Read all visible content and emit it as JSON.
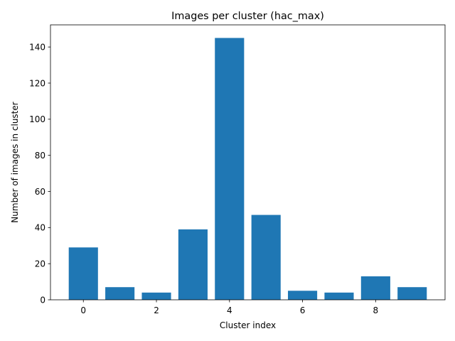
{
  "chart_data": {
    "type": "bar",
    "title": "Images per cluster (hac_max)",
    "xlabel": "Cluster index",
    "ylabel": "Number of images in cluster",
    "categories": [
      0,
      1,
      2,
      3,
      4,
      5,
      6,
      7,
      8,
      9
    ],
    "values": [
      29,
      7,
      4,
      39,
      145,
      47,
      5,
      4,
      13,
      7
    ],
    "xticks": [
      0,
      2,
      4,
      6,
      8
    ],
    "yticks": [
      0,
      20,
      40,
      60,
      80,
      100,
      120,
      140
    ],
    "xlim": [
      -0.9,
      9.9
    ],
    "ylim": [
      0,
      152.25
    ],
    "bar_color": "#1f77b4",
    "grid": false,
    "legend": false
  }
}
